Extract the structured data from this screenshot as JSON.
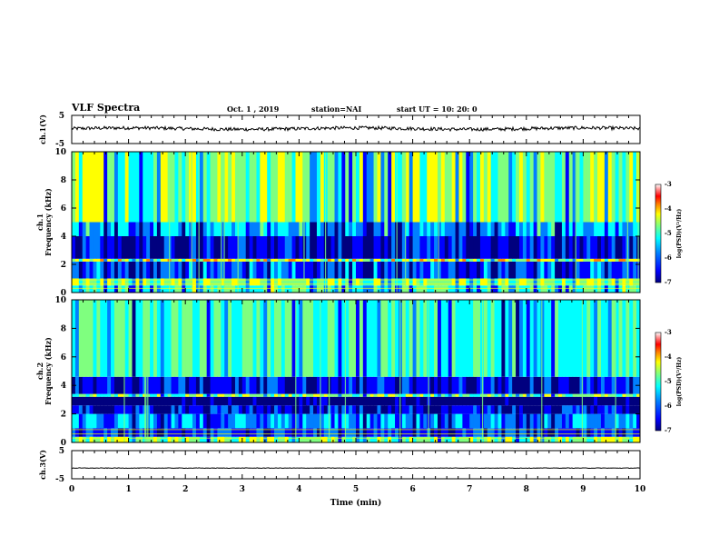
{
  "header": {
    "title": "VLF Spectra",
    "date": "Oct. 1  , 2019",
    "station": "station=NAI",
    "start_ut": "start  UT  =   10: 20: 0"
  },
  "colors": {
    "trace": "#000000",
    "colormap": [
      "#00007f",
      "#0000ff",
      "#007fff",
      "#00ffff",
      "#7fff7f",
      "#ffff00",
      "#ff7f00",
      "#ff0000",
      "#ff9090",
      "#ffffff"
    ]
  },
  "chart_data": [
    {
      "type": "line",
      "panel": "ch1-waveform",
      "ylabel": "ch.1(V)",
      "ylim": [
        -5,
        5
      ],
      "yticks": [
        "5",
        "-5"
      ],
      "xlim": [
        0,
        10
      ],
      "description_values": {
        "baseline": 0.3,
        "noise_amplitude": 0.6
      }
    },
    {
      "type": "heatmap",
      "panel": "ch1-spectrogram",
      "ylabel_line1": "ch.1",
      "ylabel_line2": "Frequency  (kHz)",
      "ylim": [
        0,
        10
      ],
      "yticks": [
        "0",
        "2",
        "4",
        "6",
        "8",
        "10"
      ],
      "xlim": [
        0,
        10
      ],
      "zlim": [
        -7,
        -3
      ],
      "bands": [
        {
          "from": 0,
          "to": 0.5,
          "level": -5.2
        },
        {
          "from": 0.5,
          "to": 1.0,
          "level": -4.8
        },
        {
          "from": 1.0,
          "to": 2.2,
          "level": -6.0
        },
        {
          "from": 2.2,
          "to": 2.4,
          "level": -4.6
        },
        {
          "from": 2.4,
          "to": 4.0,
          "level": -6.3
        },
        {
          "from": 4.0,
          "to": 5.0,
          "level": -5.6
        },
        {
          "from": 5.0,
          "to": 10.0,
          "level": -4.9
        }
      ],
      "colorbar": {
        "ticks": [
          "-3",
          "-4",
          "-5",
          "-6",
          "-7"
        ],
        "label": "log(PSD)(V²/Hz)"
      }
    },
    {
      "type": "heatmap",
      "panel": "ch2-spectrogram",
      "ylabel_line1": "ch.2",
      "ylabel_line2": "Frequency  (kHz)",
      "ylim": [
        0,
        10
      ],
      "yticks": [
        "0",
        "2",
        "4",
        "6",
        "8",
        "10"
      ],
      "xlim": [
        0,
        10
      ],
      "zlim": [
        -7,
        -3
      ],
      "bands": [
        {
          "from": 0,
          "to": 0.4,
          "level": -5.0
        },
        {
          "from": 0.4,
          "to": 1.0,
          "level": -6.2
        },
        {
          "from": 1.0,
          "to": 2.0,
          "level": -5.8
        },
        {
          "from": 2.0,
          "to": 2.6,
          "level": -6.4
        },
        {
          "from": 2.6,
          "to": 3.2,
          "level": -6.9
        },
        {
          "from": 3.2,
          "to": 3.4,
          "level": -5.0
        },
        {
          "from": 3.4,
          "to": 4.6,
          "level": -6.3
        },
        {
          "from": 4.6,
          "to": 10.0,
          "level": -5.3
        }
      ],
      "colorbar": {
        "ticks": [
          "-3",
          "-4",
          "-5",
          "-6",
          "-7"
        ],
        "label": "log(PSD)(V²/Hz)"
      }
    },
    {
      "type": "line",
      "panel": "ch3-waveform",
      "ylabel": "ch.3(V)",
      "ylim": [
        -5,
        5
      ],
      "yticks": [
        "5",
        "-5"
      ],
      "xlim": [
        0,
        10
      ],
      "xticks": [
        "0",
        "1",
        "2",
        "3",
        "4",
        "5",
        "6",
        "7",
        "8",
        "9",
        "10"
      ],
      "xlabel": "Time  (min)",
      "description_values": {
        "baseline": -1.2,
        "noise_amplitude": 0.1
      }
    }
  ]
}
